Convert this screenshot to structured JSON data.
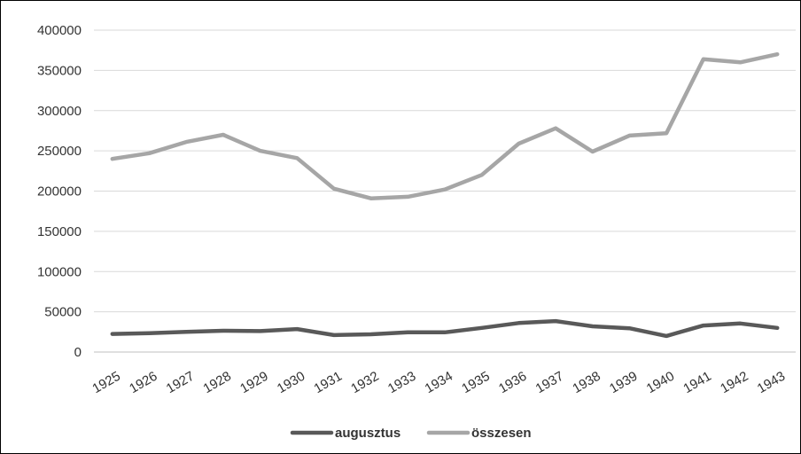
{
  "chart_data": {
    "type": "line",
    "categories": [
      "1925",
      "1926",
      "1927",
      "1928",
      "1929",
      "1930",
      "1931",
      "1932",
      "1933",
      "1934",
      "1935",
      "1936",
      "1937",
      "1938",
      "1939",
      "1940",
      "1941",
      "1942",
      "1943"
    ],
    "series": [
      {
        "name": "augusztus",
        "color": "#595959",
        "values": [
          22500,
          23500,
          25000,
          26500,
          26000,
          28500,
          21000,
          22000,
          24500,
          24500,
          30000,
          36000,
          38500,
          32000,
          29500,
          20000,
          33000,
          35500,
          30000
        ]
      },
      {
        "name": "összesen",
        "color": "#a6a6a6",
        "values": [
          240000,
          247000,
          261000,
          270000,
          250000,
          241000,
          203000,
          191000,
          193000,
          202000,
          220000,
          259000,
          278000,
          249000,
          269000,
          272000,
          364000,
          360000,
          370000
        ]
      }
    ],
    "yticks": [
      "0",
      "50000",
      "100000",
      "150000",
      "200000",
      "250000",
      "300000",
      "350000",
      "400000"
    ],
    "ylim": [
      0,
      400000
    ],
    "grid": true,
    "legend_position": "bottom"
  }
}
